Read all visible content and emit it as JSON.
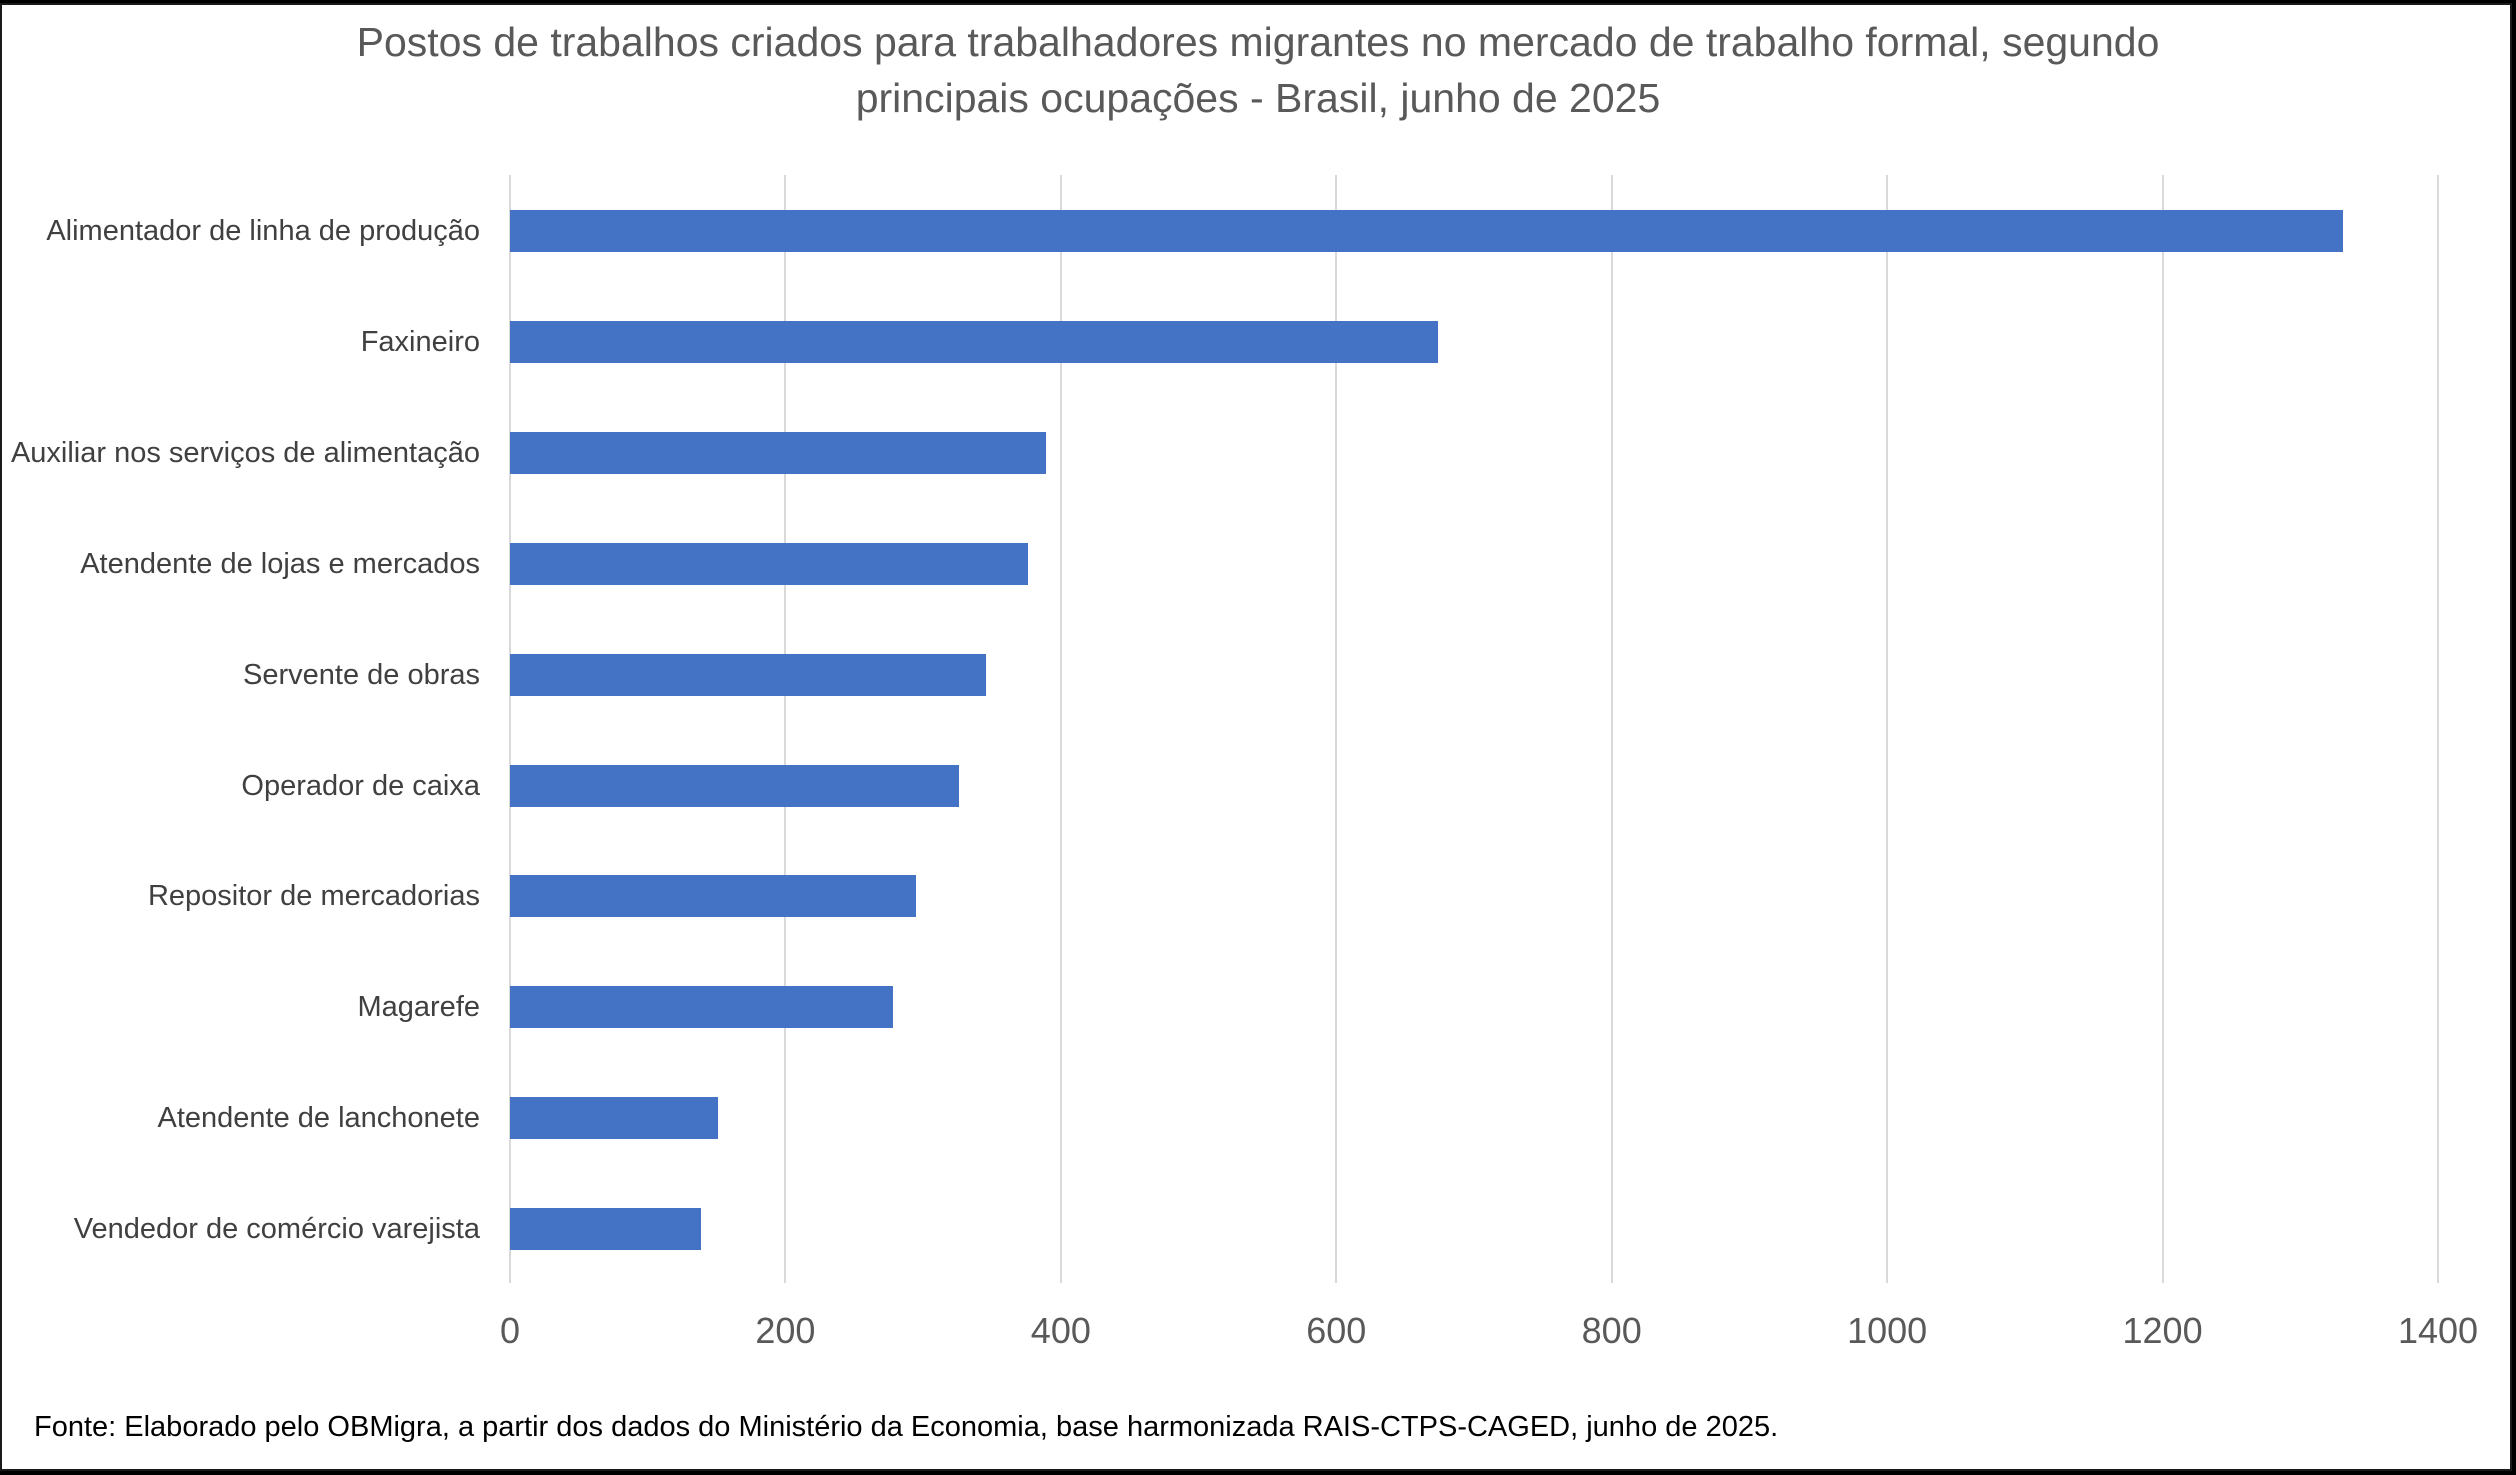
{
  "title": {
    "line1": "Postos de trabalhos criados para trabalhadores migrantes no mercado de trabalho formal,  segundo",
    "line2": "principais ocupações - Brasil, junho de 2025"
  },
  "source": "Fonte: Elaborado pelo OBMigra, a partir dos dados do Ministério da Economia, base harmonizada RAIS-CTPS-CAGED, junho de 2025.",
  "colors": {
    "bar": "#4472c4",
    "grid": "#d9d9d9",
    "text": "#595959"
  },
  "chart_data": {
    "type": "bar",
    "orientation": "horizontal",
    "title": "Postos de trabalhos criados para trabalhadores migrantes no mercado de trabalho formal,  segundo principais ocupações - Brasil, junho de 2025",
    "categories": [
      "Alimentador de linha de produção",
      "Faxineiro",
      "Auxiliar nos serviços de alimentação",
      "Atendente de lojas e mercados",
      "Servente de obras",
      "Operador de caixa",
      "Repositor de mercadorias",
      "Magarefe",
      "Atendente de lanchonete",
      "Vendedor de comércio varejista"
    ],
    "values": [
      1331,
      674,
      389,
      376,
      346,
      326,
      295,
      278,
      151,
      139
    ],
    "xlabel": "",
    "ylabel": "",
    "xlim": [
      0,
      1400
    ],
    "xticks": [
      "0",
      "200",
      "400",
      "600",
      "800",
      "1000",
      "1200",
      "1400"
    ],
    "grid": "vertical",
    "legend": "none"
  }
}
